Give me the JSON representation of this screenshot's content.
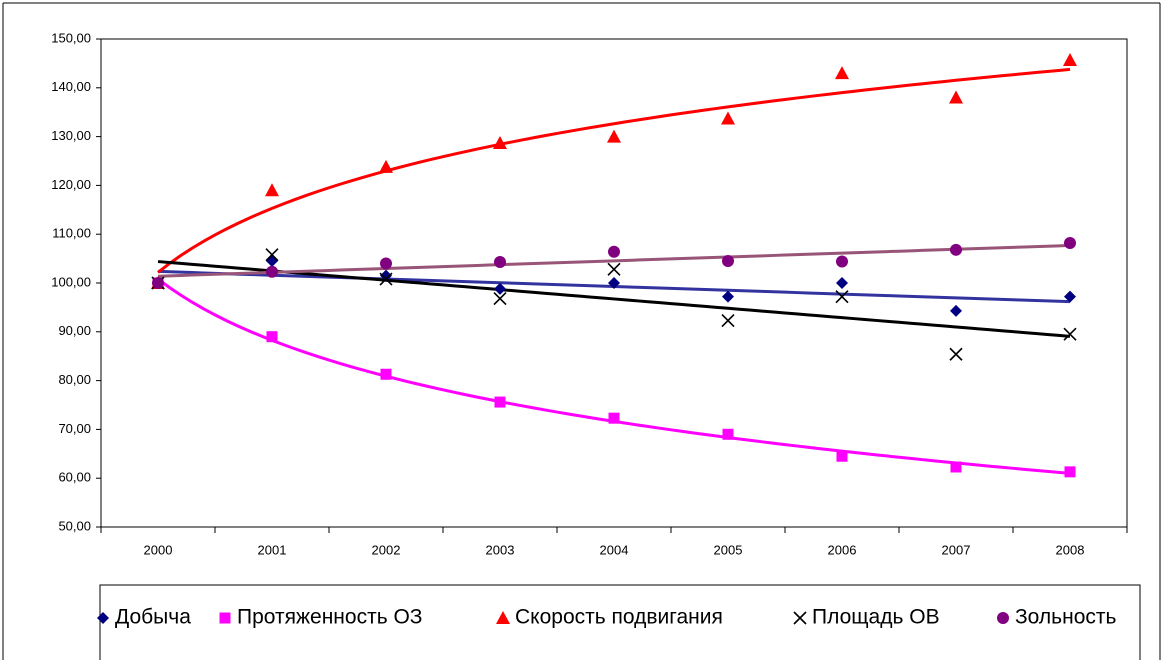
{
  "chart_data": {
    "type": "line",
    "categories": [
      "2000",
      "2001",
      "2002",
      "2003",
      "2004",
      "2005",
      "2006",
      "2007",
      "2008"
    ],
    "ylim": [
      50,
      150
    ],
    "yticks": [
      {
        "value": 50,
        "label": "50,00"
      },
      {
        "value": 60,
        "label": "60,00"
      },
      {
        "value": 70,
        "label": "70,00"
      },
      {
        "value": 80,
        "label": "80,00"
      },
      {
        "value": 90,
        "label": "90,00"
      },
      {
        "value": 100,
        "label": "100,00"
      },
      {
        "value": 110,
        "label": "110,00"
      },
      {
        "value": 120,
        "label": "120,00"
      },
      {
        "value": 130,
        "label": "130,00"
      },
      {
        "value": 140,
        "label": "140,00"
      },
      {
        "value": 150,
        "label": "150,00"
      }
    ],
    "grid": false,
    "legend": "bottom",
    "series": [
      {
        "name": "Добыча",
        "color": "#000080",
        "marker": "diamond",
        "trendline": "linear",
        "trendline_color": "#3333a0",
        "values": [
          100,
          104.5,
          101.5,
          98.8,
          100,
          97.2,
          100,
          94.3,
          97.2
        ]
      },
      {
        "name": "Протяженность ОЗ",
        "color": "#ff00ff",
        "marker": "square",
        "trendline": "log",
        "trendline_color": "#ff00ff",
        "values": [
          100,
          89,
          81.3,
          75.6,
          72.3,
          69,
          64.5,
          62.3,
          61.3
        ]
      },
      {
        "name": "Скорость подвигания",
        "color": "#ff0000",
        "marker": "triangle",
        "trendline": "log",
        "trendline_color": "#ff0000",
        "values": [
          100,
          119,
          123.8,
          128.7,
          130,
          133.7,
          143,
          138,
          145.7
        ]
      },
      {
        "name": "Площадь ОВ",
        "color": "#000000",
        "marker": "x",
        "trendline": "linear",
        "trendline_color": "#000000",
        "values": [
          100,
          105.8,
          100.8,
          96.8,
          102.8,
          92.3,
          97.2,
          85.4,
          89.5
        ]
      },
      {
        "name": "Зольность",
        "color": "#800080",
        "marker": "circle",
        "trendline": "linear",
        "trendline_color": "#995577",
        "values": [
          100,
          102.3,
          104,
          104.3,
          106.4,
          104.5,
          104.4,
          106.8,
          108.2
        ]
      }
    ]
  }
}
